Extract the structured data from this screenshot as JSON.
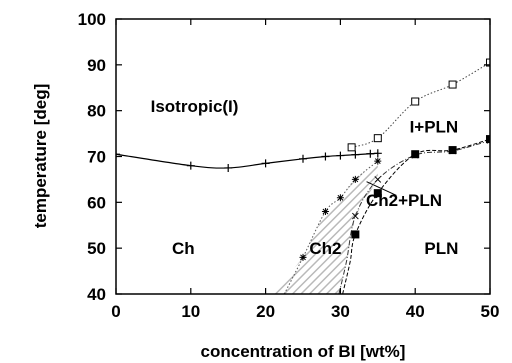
{
  "chart_data": {
    "type": "line",
    "title": "",
    "xlabel": "concentration of BI [wt%]",
    "ylabel": "temperature [deg]",
    "xlim": [
      0,
      50
    ],
    "ylim": [
      40,
      100
    ],
    "xticks": [
      0,
      10,
      20,
      30,
      40,
      50
    ],
    "yticks": [
      40,
      50,
      60,
      70,
      80,
      90,
      100
    ],
    "grid": false,
    "series": [
      {
        "marker": "plus",
        "line": "solid",
        "x": [
          0,
          10,
          15,
          20,
          25,
          28,
          30,
          32,
          34,
          35
        ],
        "y": [
          70.5,
          68,
          67.5,
          68.5,
          69.5,
          70,
          70.2,
          70.4,
          70.6,
          70.7
        ]
      },
      {
        "marker": "open-square",
        "line": "dotted",
        "x": [
          31.5,
          35,
          40,
          45,
          50
        ],
        "y": [
          72,
          74,
          82,
          85.7,
          90.5
        ]
      },
      {
        "marker": "filled-square",
        "line": "dashed",
        "x": [
          32,
          35,
          40,
          45,
          50
        ],
        "y": [
          53,
          62,
          70.5,
          71.4,
          73.8
        ]
      },
      {
        "marker": "asterisk",
        "line": "dotted",
        "x": [
          25,
          28,
          30,
          32,
          35
        ],
        "y": [
          48,
          58,
          61,
          65,
          69
        ]
      },
      {
        "marker": "cross",
        "line": "dash-dot",
        "x": [
          32,
          35,
          40,
          45,
          50
        ],
        "y": [
          57,
          65,
          70.3,
          71.2,
          73.5
        ]
      }
    ],
    "region_labels": [
      {
        "text": "Isotropic(I)",
        "x": 10.5,
        "y": 81
      },
      {
        "text": "I+PLN",
        "x": 42.5,
        "y": 76.5
      },
      {
        "text": "Ch2+PLN",
        "x": 38.5,
        "y": 60.5
      },
      {
        "text": "Ch",
        "x": 9,
        "y": 50
      },
      {
        "text": "Ch2",
        "x": 28,
        "y": 50
      },
      {
        "text": "PLN",
        "x": 43.5,
        "y": 50
      }
    ],
    "annotations": [
      {
        "type": "leader-line",
        "from": [
          33.5,
          64.5
        ],
        "to": [
          37.5,
          61.5
        ]
      }
    ],
    "shaded_region": {
      "label": "Ch2",
      "pattern": "diagonal-hatch"
    }
  }
}
